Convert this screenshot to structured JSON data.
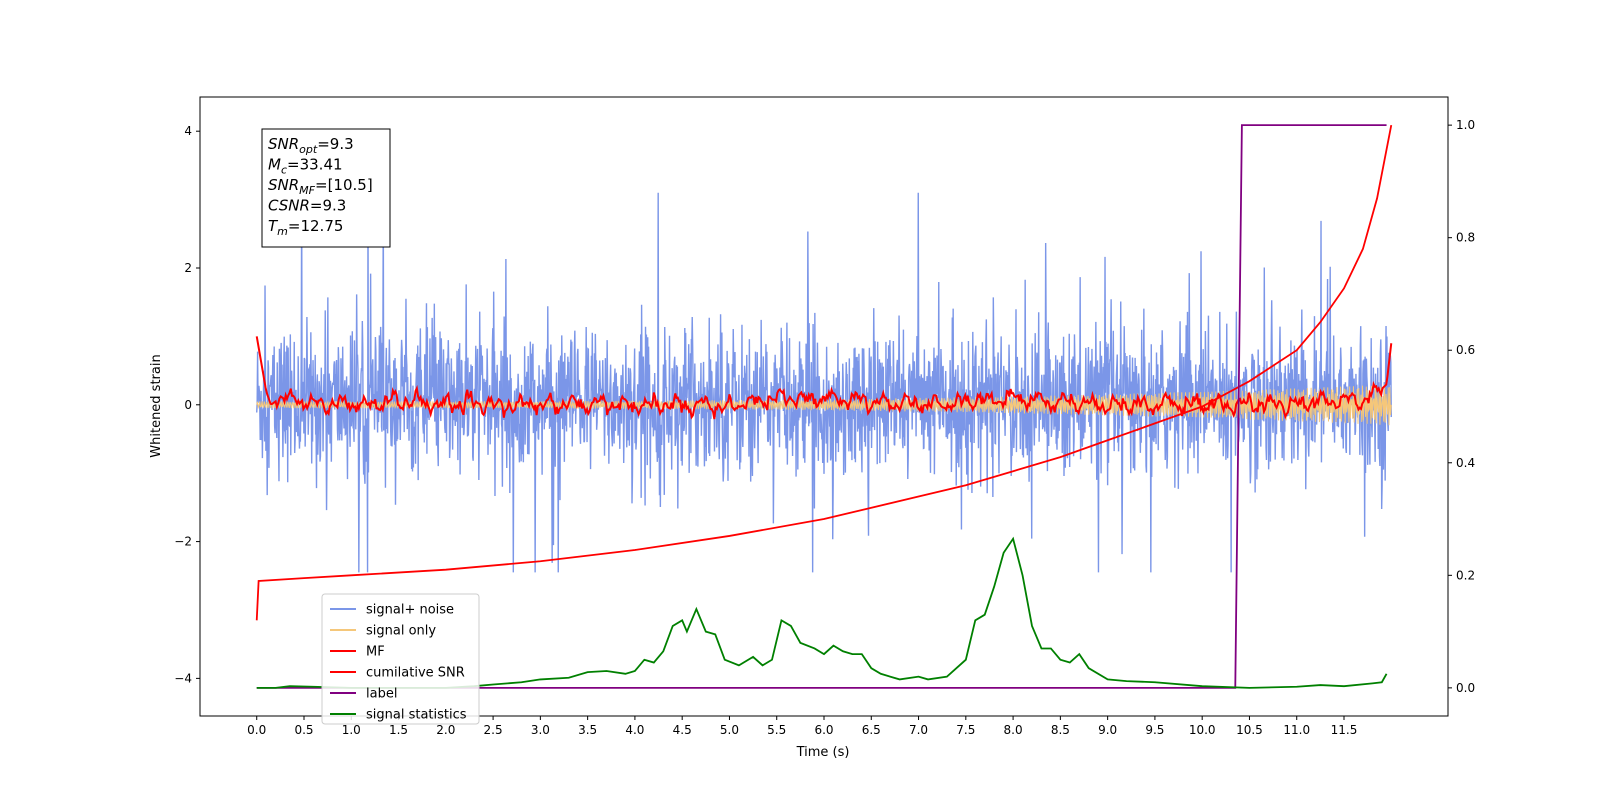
{
  "chart_data": {
    "type": "line",
    "xlabel": "Time (s)",
    "ylabel_left": "Whitened strain",
    "xlim": [
      -0.6,
      12.6
    ],
    "ylim_left": [
      -4.55,
      4.5
    ],
    "ylim_right": [
      -0.05,
      1.05
    ],
    "x_ticks": [
      "0.0",
      "0.5",
      "1.0",
      "1.5",
      "2.0",
      "2.5",
      "3.0",
      "3.5",
      "4.0",
      "4.5",
      "5.0",
      "5.5",
      "6.0",
      "6.5",
      "7.0",
      "7.5",
      "8.0",
      "8.5",
      "9.0",
      "9.5",
      "10.0",
      "10.5",
      "11.0",
      "11.5"
    ],
    "y_ticks_left": [
      "4",
      "2",
      "0",
      "−2",
      "−4"
    ],
    "y_ticks_right": [
      "1.0",
      "0.8",
      "0.6",
      "0.4",
      "0.2",
      "0.0"
    ],
    "grid": false,
    "legend_position": "lower-left",
    "annotation": {
      "lines": [
        {
          "base": "SNR",
          "sub": "opt",
          "value": "=9.3"
        },
        {
          "base": "M",
          "sub": "c",
          "value": "=33.41"
        },
        {
          "base": "SNR",
          "sub": "MF",
          "value": "=[10.5]"
        },
        {
          "base": "CSNR",
          "sub": "",
          "value": "=9.3"
        },
        {
          "base": "T",
          "sub": "m",
          "value": "=12.75"
        }
      ]
    },
    "series": [
      {
        "name": "signal+ noise",
        "color": "#7b96e8",
        "axis": "left",
        "style": "noise",
        "x_range": [
          0.0,
          12.0
        ],
        "band": [
          -0.9,
          1.0
        ],
        "peak_min": -2.45,
        "peak_max": 3.1
      },
      {
        "name": "signal only",
        "color": "#f5c77a",
        "axis": "left",
        "style": "chirp",
        "x_range": [
          0.0,
          12.0
        ],
        "amplitude_start": 0.05,
        "amplitude_end": 0.3
      },
      {
        "name": "MF",
        "color": "#ff0000",
        "axis": "left",
        "style": "mf",
        "points": [
          [
            0.0,
            1.0
          ],
          [
            0.05,
            0.6
          ],
          [
            0.1,
            0.2
          ],
          [
            0.15,
            0.0
          ],
          [
            0.25,
            0.1
          ],
          [
            0.5,
            0.05
          ],
          [
            1.0,
            0.0
          ],
          [
            1.5,
            0.05
          ],
          [
            2.0,
            0.0
          ],
          [
            3.0,
            0.0
          ],
          [
            4.0,
            0.0
          ],
          [
            5.0,
            0.0
          ],
          [
            5.5,
            0.1
          ],
          [
            6.0,
            0.1
          ],
          [
            7.0,
            0.0
          ],
          [
            8.0,
            0.1
          ],
          [
            9.0,
            0.0
          ],
          [
            10.0,
            0.0
          ],
          [
            11.0,
            0.0
          ],
          [
            11.8,
            0.1
          ],
          [
            11.95,
            0.3
          ],
          [
            12.0,
            0.9
          ]
        ]
      },
      {
        "name": "cumilative SNR",
        "color": "#ff0000",
        "axis": "right",
        "points": [
          [
            0.0,
            0.12
          ],
          [
            0.02,
            0.19
          ],
          [
            0.5,
            0.195
          ],
          [
            1.0,
            0.2
          ],
          [
            2.0,
            0.21
          ],
          [
            3.0,
            0.225
          ],
          [
            4.0,
            0.245
          ],
          [
            5.0,
            0.27
          ],
          [
            6.0,
            0.3
          ],
          [
            7.0,
            0.34
          ],
          [
            7.5,
            0.36
          ],
          [
            8.0,
            0.385
          ],
          [
            8.5,
            0.41
          ],
          [
            9.0,
            0.44
          ],
          [
            9.5,
            0.47
          ],
          [
            10.0,
            0.5
          ],
          [
            10.5,
            0.545
          ],
          [
            11.0,
            0.6
          ],
          [
            11.25,
            0.65
          ],
          [
            11.5,
            0.71
          ],
          [
            11.7,
            0.78
          ],
          [
            11.85,
            0.87
          ],
          [
            12.0,
            1.0
          ]
        ]
      },
      {
        "name": "label",
        "color": "#800080",
        "axis": "right",
        "points": [
          [
            0.0,
            0.0
          ],
          [
            10.35,
            0.0
          ],
          [
            10.42,
            1.0
          ],
          [
            11.95,
            1.0
          ]
        ]
      },
      {
        "name": "signal statistics",
        "color": "#008000",
        "axis": "right",
        "points": [
          [
            0.0,
            0.0
          ],
          [
            0.2,
            0.0
          ],
          [
            0.35,
            0.003
          ],
          [
            0.6,
            0.002
          ],
          [
            1.0,
            0.0
          ],
          [
            1.5,
            0.0
          ],
          [
            2.0,
            0.0
          ],
          [
            2.3,
            0.003
          ],
          [
            2.5,
            0.006
          ],
          [
            2.8,
            0.01
          ],
          [
            3.0,
            0.015
          ],
          [
            3.3,
            0.018
          ],
          [
            3.5,
            0.028
          ],
          [
            3.7,
            0.03
          ],
          [
            3.9,
            0.025
          ],
          [
            4.0,
            0.03
          ],
          [
            4.1,
            0.05
          ],
          [
            4.2,
            0.045
          ],
          [
            4.3,
            0.065
          ],
          [
            4.4,
            0.11
          ],
          [
            4.5,
            0.12
          ],
          [
            4.55,
            0.1
          ],
          [
            4.65,
            0.14
          ],
          [
            4.75,
            0.1
          ],
          [
            4.85,
            0.095
          ],
          [
            4.95,
            0.05
          ],
          [
            5.1,
            0.04
          ],
          [
            5.25,
            0.055
          ],
          [
            5.35,
            0.04
          ],
          [
            5.45,
            0.05
          ],
          [
            5.55,
            0.12
          ],
          [
            5.65,
            0.11
          ],
          [
            5.75,
            0.08
          ],
          [
            5.9,
            0.07
          ],
          [
            6.0,
            0.06
          ],
          [
            6.1,
            0.075
          ],
          [
            6.2,
            0.065
          ],
          [
            6.3,
            0.06
          ],
          [
            6.4,
            0.06
          ],
          [
            6.5,
            0.035
          ],
          [
            6.6,
            0.025
          ],
          [
            6.8,
            0.015
          ],
          [
            7.0,
            0.02
          ],
          [
            7.1,
            0.015
          ],
          [
            7.3,
            0.02
          ],
          [
            7.5,
            0.05
          ],
          [
            7.6,
            0.12
          ],
          [
            7.7,
            0.13
          ],
          [
            7.8,
            0.18
          ],
          [
            7.9,
            0.24
          ],
          [
            8.0,
            0.265
          ],
          [
            8.1,
            0.2
          ],
          [
            8.2,
            0.11
          ],
          [
            8.3,
            0.07
          ],
          [
            8.4,
            0.07
          ],
          [
            8.5,
            0.05
          ],
          [
            8.6,
            0.045
          ],
          [
            8.7,
            0.06
          ],
          [
            8.8,
            0.035
          ],
          [
            9.0,
            0.015
          ],
          [
            9.2,
            0.012
          ],
          [
            9.5,
            0.01
          ],
          [
            10.0,
            0.003
          ],
          [
            10.5,
            0.0
          ],
          [
            11.0,
            0.002
          ],
          [
            11.25,
            0.005
          ],
          [
            11.5,
            0.003
          ],
          [
            11.8,
            0.008
          ],
          [
            11.9,
            0.01
          ],
          [
            11.95,
            0.025
          ]
        ]
      }
    ]
  }
}
